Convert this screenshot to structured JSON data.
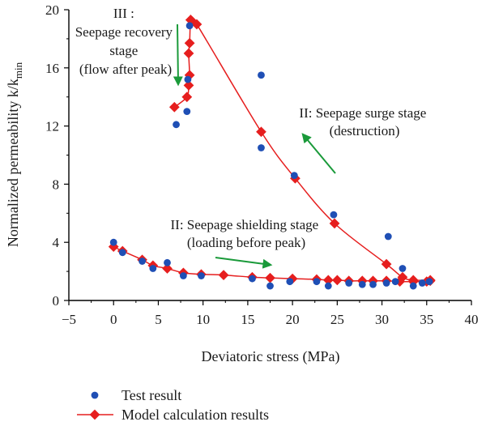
{
  "chart_data": {
    "type": "scatter",
    "title": "",
    "xlabel": "Deviatoric stress (MPa)",
    "ylabel": "Normalized permeability k/k",
    "ylabel_sub": "min",
    "xlim": [
      -5,
      40
    ],
    "ylim": [
      0,
      20
    ],
    "x_ticks": [
      -5,
      0,
      5,
      10,
      15,
      20,
      25,
      30,
      35,
      40
    ],
    "y_ticks": [
      0,
      4,
      8,
      12,
      16,
      20
    ],
    "grid": false,
    "legend_position": "bottom-left",
    "series": [
      {
        "name": "Test result",
        "kind": "scatter",
        "color": "#1f4fb5",
        "points": [
          [
            0.0,
            4.0
          ],
          [
            1.0,
            3.3
          ],
          [
            3.2,
            2.7
          ],
          [
            4.4,
            2.2
          ],
          [
            6.0,
            2.6
          ],
          [
            7.8,
            1.7
          ],
          [
            9.8,
            1.7
          ],
          [
            15.5,
            1.5
          ],
          [
            17.5,
            1.0
          ],
          [
            19.7,
            1.3
          ],
          [
            22.7,
            1.3
          ],
          [
            24.0,
            1.0
          ],
          [
            26.3,
            1.2
          ],
          [
            27.8,
            1.1
          ],
          [
            29.0,
            1.1
          ],
          [
            30.5,
            1.2
          ],
          [
            31.5,
            1.3
          ],
          [
            33.5,
            1.0
          ],
          [
            34.5,
            1.2
          ],
          [
            35.3,
            1.3
          ],
          [
            7.0,
            12.1
          ],
          [
            8.2,
            13.0
          ],
          [
            8.3,
            15.2
          ],
          [
            8.5,
            18.9
          ],
          [
            16.5,
            15.5
          ],
          [
            16.5,
            10.5
          ],
          [
            20.2,
            8.6
          ],
          [
            24.6,
            5.9
          ],
          [
            30.7,
            4.4
          ],
          [
            32.3,
            2.2
          ]
        ]
      },
      {
        "name": "Model calculation results",
        "kind": "line-marker",
        "color": "#e61e1e",
        "segments": [
          [
            [
              0.0,
              3.7
            ],
            [
              1.0,
              3.4
            ],
            [
              3.2,
              2.8
            ],
            [
              4.4,
              2.4
            ],
            [
              6.0,
              2.2
            ],
            [
              7.8,
              1.9
            ],
            [
              9.8,
              1.8
            ],
            [
              12.3,
              1.75
            ],
            [
              15.5,
              1.6
            ],
            [
              17.5,
              1.55
            ],
            [
              20.0,
              1.5
            ],
            [
              22.7,
              1.45
            ],
            [
              24.0,
              1.4
            ],
            [
              25.0,
              1.4
            ],
            [
              26.3,
              1.35
            ],
            [
              27.8,
              1.35
            ],
            [
              29.0,
              1.35
            ],
            [
              30.5,
              1.35
            ],
            [
              32.0,
              1.3
            ],
            [
              33.5,
              1.3
            ],
            [
              35.0,
              1.3
            ],
            [
              35.4,
              1.35
            ]
          ],
          [
            [
              6.8,
              13.3
            ],
            [
              8.2,
              14.0
            ],
            [
              8.4,
              14.8
            ],
            [
              8.5,
              15.5
            ],
            [
              8.4,
              17.0
            ],
            [
              8.5,
              17.7
            ],
            [
              8.6,
              19.3
            ],
            [
              8.8,
              19.2
            ],
            [
              9.3,
              19.0
            ],
            [
              16.5,
              11.6
            ],
            [
              20.3,
              8.4
            ],
            [
              24.7,
              5.3
            ],
            [
              30.5,
              2.5
            ],
            [
              32.3,
              1.6
            ],
            [
              33.5,
              1.4
            ],
            [
              35.4,
              1.4
            ]
          ]
        ]
      }
    ],
    "annotations": [
      {
        "id": "stage3",
        "lines": [
          "III :",
          "Seepage recovery",
          "stage",
          "(flow after peak)"
        ]
      },
      {
        "id": "stage2-surge",
        "lines": [
          "II: Seepage surge stage",
          "(destruction)"
        ]
      },
      {
        "id": "stage2-shield",
        "lines": [
          "II: Seepage shielding stage",
          "(loading before peak)"
        ]
      }
    ],
    "arrow_color": "#1a9a3a"
  }
}
